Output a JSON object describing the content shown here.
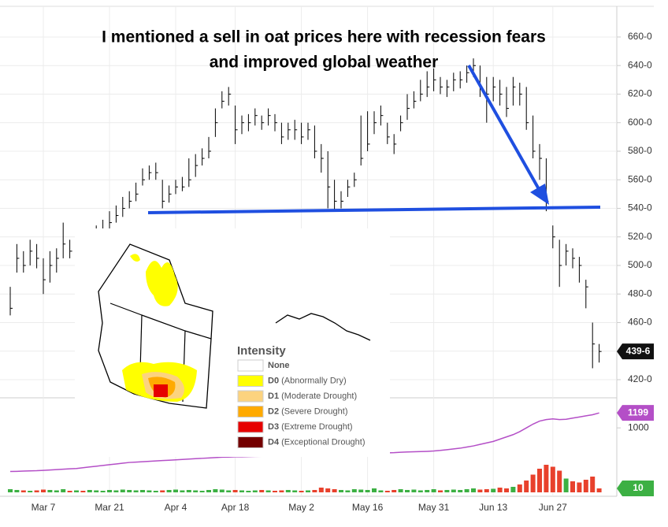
{
  "chart_data": {
    "type": "ohlc",
    "annotation": [
      "I mentioned a sell in oat prices here with recession fears",
      "and improved global weather"
    ],
    "categories": [
      null,
      null,
      null,
      null,
      null,
      "Mar 7",
      null,
      null,
      null,
      null,
      null,
      null,
      null,
      null,
      null,
      "Mar 21",
      null,
      null,
      null,
      null,
      null,
      null,
      null,
      null,
      null,
      "Apr 4",
      null,
      null,
      null,
      null,
      null,
      null,
      null,
      null,
      "Apr 18",
      null,
      null,
      null,
      null,
      null,
      null,
      null,
      null,
      null,
      "May 2",
      null,
      null,
      null,
      null,
      null,
      null,
      null,
      null,
      null,
      "May 16",
      null,
      null,
      null,
      null,
      null,
      null,
      null,
      null,
      null,
      "May 31",
      null,
      null,
      null,
      null,
      null,
      null,
      null,
      null,
      "Jun 13",
      null,
      null,
      null,
      null,
      null,
      null,
      null,
      null,
      "Jun 27",
      null,
      null,
      null,
      null,
      null,
      null,
      null
    ],
    "high": [
      485,
      515,
      510,
      518,
      515,
      505,
      510,
      512,
      530,
      518,
      518,
      515,
      520,
      528,
      532,
      538,
      542,
      548,
      552,
      558,
      568,
      570,
      572,
      560,
      556,
      560,
      562,
      575,
      578,
      582,
      590,
      610,
      622,
      625,
      612,
      605,
      606,
      610,
      605,
      610,
      606,
      600,
      600,
      602,
      600,
      600,
      598,
      585,
      580,
      560,
      552,
      560,
      565,
      605,
      608,
      608,
      612,
      600,
      592,
      605,
      620,
      622,
      630,
      636,
      638,
      632,
      630,
      635,
      636,
      640,
      645,
      640,
      632,
      632,
      630,
      625,
      632,
      628,
      625,
      605,
      585,
      575,
      528,
      518,
      515,
      512,
      506,
      490,
      460,
      445
    ],
    "low": [
      465,
      495,
      495,
      500,
      498,
      480,
      488,
      495,
      505,
      505,
      502,
      498,
      505,
      512,
      518,
      524,
      530,
      534,
      540,
      545,
      556,
      560,
      560,
      540,
      544,
      550,
      552,
      555,
      562,
      570,
      575,
      590,
      610,
      612,
      585,
      592,
      594,
      598,
      595,
      598,
      594,
      585,
      588,
      588,
      585,
      588,
      575,
      565,
      540,
      538,
      540,
      548,
      555,
      570,
      580,
      592,
      598,
      585,
      578,
      594,
      602,
      610,
      615,
      618,
      622,
      620,
      618,
      622,
      624,
      628,
      632,
      618,
      600,
      615,
      612,
      604,
      612,
      612,
      595,
      575,
      560,
      538,
      512,
      485,
      500,
      498,
      488,
      470,
      428,
      432
    ],
    "close": [
      470,
      505,
      500,
      510,
      505,
      490,
      500,
      505,
      515,
      510,
      510,
      505,
      515,
      520,
      525,
      530,
      535,
      540,
      545,
      550,
      560,
      565,
      565,
      545,
      550,
      555,
      555,
      560,
      570,
      575,
      580,
      600,
      615,
      620,
      595,
      600,
      600,
      605,
      600,
      605,
      600,
      590,
      595,
      595,
      590,
      595,
      580,
      575,
      555,
      545,
      545,
      555,
      560,
      575,
      585,
      600,
      605,
      590,
      585,
      600,
      610,
      615,
      620,
      625,
      630,
      625,
      625,
      630,
      630,
      635,
      640,
      625,
      620,
      625,
      620,
      610,
      625,
      620,
      600,
      580,
      575,
      545,
      520,
      500,
      510,
      505,
      500,
      485,
      445,
      439.75
    ],
    "color": "#000000",
    "ylim": [
      407.3,
      681.5
    ],
    "yticks": [
      {
        "value": 420,
        "label": "420-0"
      },
      {
        "value": 440,
        "label": "440-0"
      },
      {
        "value": 460,
        "label": "460-0"
      },
      {
        "value": 480,
        "label": "480-0"
      },
      {
        "value": 500,
        "label": "500-0"
      },
      {
        "value": 520,
        "label": "520-0"
      },
      {
        "value": 540,
        "label": "540-0"
      },
      {
        "value": 560,
        "label": "560-0"
      },
      {
        "value": 580,
        "label": "580-0"
      },
      {
        "value": 600,
        "label": "600-0"
      },
      {
        "value": 620,
        "label": "620-0"
      },
      {
        "value": 640,
        "label": "640-0"
      },
      {
        "value": 660,
        "label": "660-0"
      }
    ],
    "grid": true,
    "last_price": {
      "value": 439.75,
      "label": "439-6"
    },
    "volume": {
      "values": [
        8,
        6,
        5,
        4,
        5,
        7,
        6,
        5,
        8,
        4,
        5,
        4,
        6,
        5,
        4,
        6,
        5,
        7,
        6,
        5,
        6,
        5,
        4,
        5,
        6,
        7,
        5,
        6,
        5,
        4,
        6,
        8,
        7,
        5,
        6,
        5,
        4,
        5,
        6,
        5,
        4,
        5,
        6,
        5,
        4,
        5,
        6,
        12,
        10,
        8,
        6,
        5,
        8,
        7,
        6,
        10,
        5,
        4,
        6,
        8,
        6,
        7,
        5,
        6,
        8,
        5,
        6,
        7,
        6,
        8,
        10,
        7,
        8,
        9,
        12,
        10,
        14,
        20,
        30,
        45,
        60,
        70,
        65,
        55,
        35,
        28,
        25,
        32,
        40,
        10
      ],
      "ylim": [
        0,
        100
      ],
      "up_color": "#3cb043",
      "down_color": "#e8412c",
      "badge_color": "#3cb043"
    },
    "open_interest": {
      "values": [
        420,
        422,
        425,
        428,
        430,
        435,
        440,
        445,
        450,
        455,
        460,
        470,
        480,
        490,
        500,
        510,
        520,
        530,
        540,
        545,
        550,
        555,
        560,
        565,
        570,
        575,
        580,
        585,
        590,
        595,
        600,
        605,
        610,
        612,
        615,
        615,
        618,
        620,
        622,
        622,
        625,
        625,
        628,
        630,
        630,
        632,
        635,
        638,
        640,
        640,
        645,
        648,
        650,
        655,
        660,
        662,
        665,
        668,
        670,
        675,
        680,
        682,
        685,
        688,
        692,
        700,
        710,
        720,
        730,
        745,
        760,
        780,
        800,
        820,
        850,
        880,
        910,
        950,
        1000,
        1050,
        1090,
        1110,
        1120,
        1110,
        1115,
        1130,
        1145,
        1160,
        1175,
        1199
      ],
      "color": "#b44fc7",
      "y2lim": [
        90,
        1400
      ],
      "y2ticks": [
        1000
      ]
    },
    "map_legend": {
      "title": "Intensity",
      "items": [
        {
          "code": "None",
          "color": "#ffffff"
        },
        {
          "code": "D0",
          "desc": "(Abnormally Dry)",
          "color": "#ffff00"
        },
        {
          "code": "D1",
          "desc": "(Moderate Drought)",
          "color": "#fcd37f"
        },
        {
          "code": "D2",
          "desc": "(Severe Drought)",
          "color": "#ffaa00"
        },
        {
          "code": "D3",
          "desc": "(Extreme Drought)",
          "color": "#e60000"
        },
        {
          "code": "D4",
          "desc": "(Exceptional Drought)",
          "color": "#730000"
        }
      ]
    }
  }
}
